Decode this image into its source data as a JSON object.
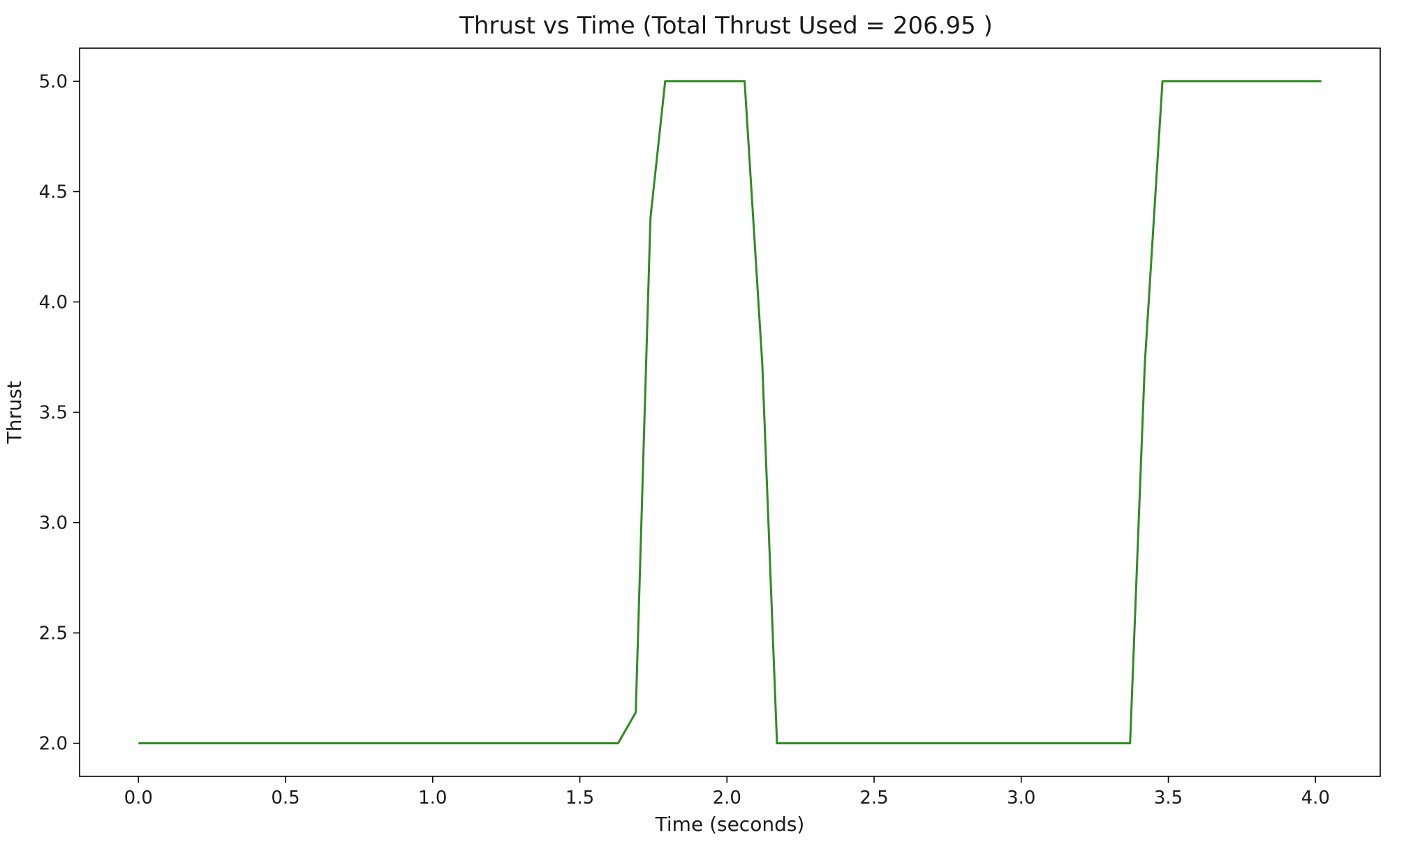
{
  "chart_data": {
    "type": "line",
    "title": "Thrust vs Time (Total Thrust Used = 206.95 )",
    "xlabel": "Time (seconds)",
    "ylabel": "Thrust",
    "xlim": [
      -0.2,
      4.22
    ],
    "ylim": [
      1.85,
      5.15
    ],
    "x_ticks": [
      0.0,
      0.5,
      1.0,
      1.5,
      2.0,
      2.5,
      3.0,
      3.5,
      4.0
    ],
    "x_tick_labels": [
      "0.0",
      "0.5",
      "1.0",
      "1.5",
      "2.0",
      "2.5",
      "3.0",
      "3.5",
      "4.0"
    ],
    "y_ticks": [
      2.0,
      2.5,
      3.0,
      3.5,
      4.0,
      4.5,
      5.0
    ],
    "y_tick_labels": [
      "2.0",
      "2.5",
      "3.0",
      "3.5",
      "4.0",
      "4.5",
      "5.0"
    ],
    "grid": false,
    "legend": "none",
    "series": [
      {
        "color": "#2e8b22",
        "x": [
          0.0,
          1.63,
          1.69,
          1.74,
          1.79,
          2.06,
          2.12,
          2.17,
          3.37,
          3.42,
          3.48,
          4.02
        ],
        "y": [
          2.0,
          2.0,
          2.14,
          4.38,
          5.0,
          5.0,
          3.72,
          2.0,
          2.0,
          3.72,
          5.0,
          5.0
        ]
      }
    ]
  }
}
